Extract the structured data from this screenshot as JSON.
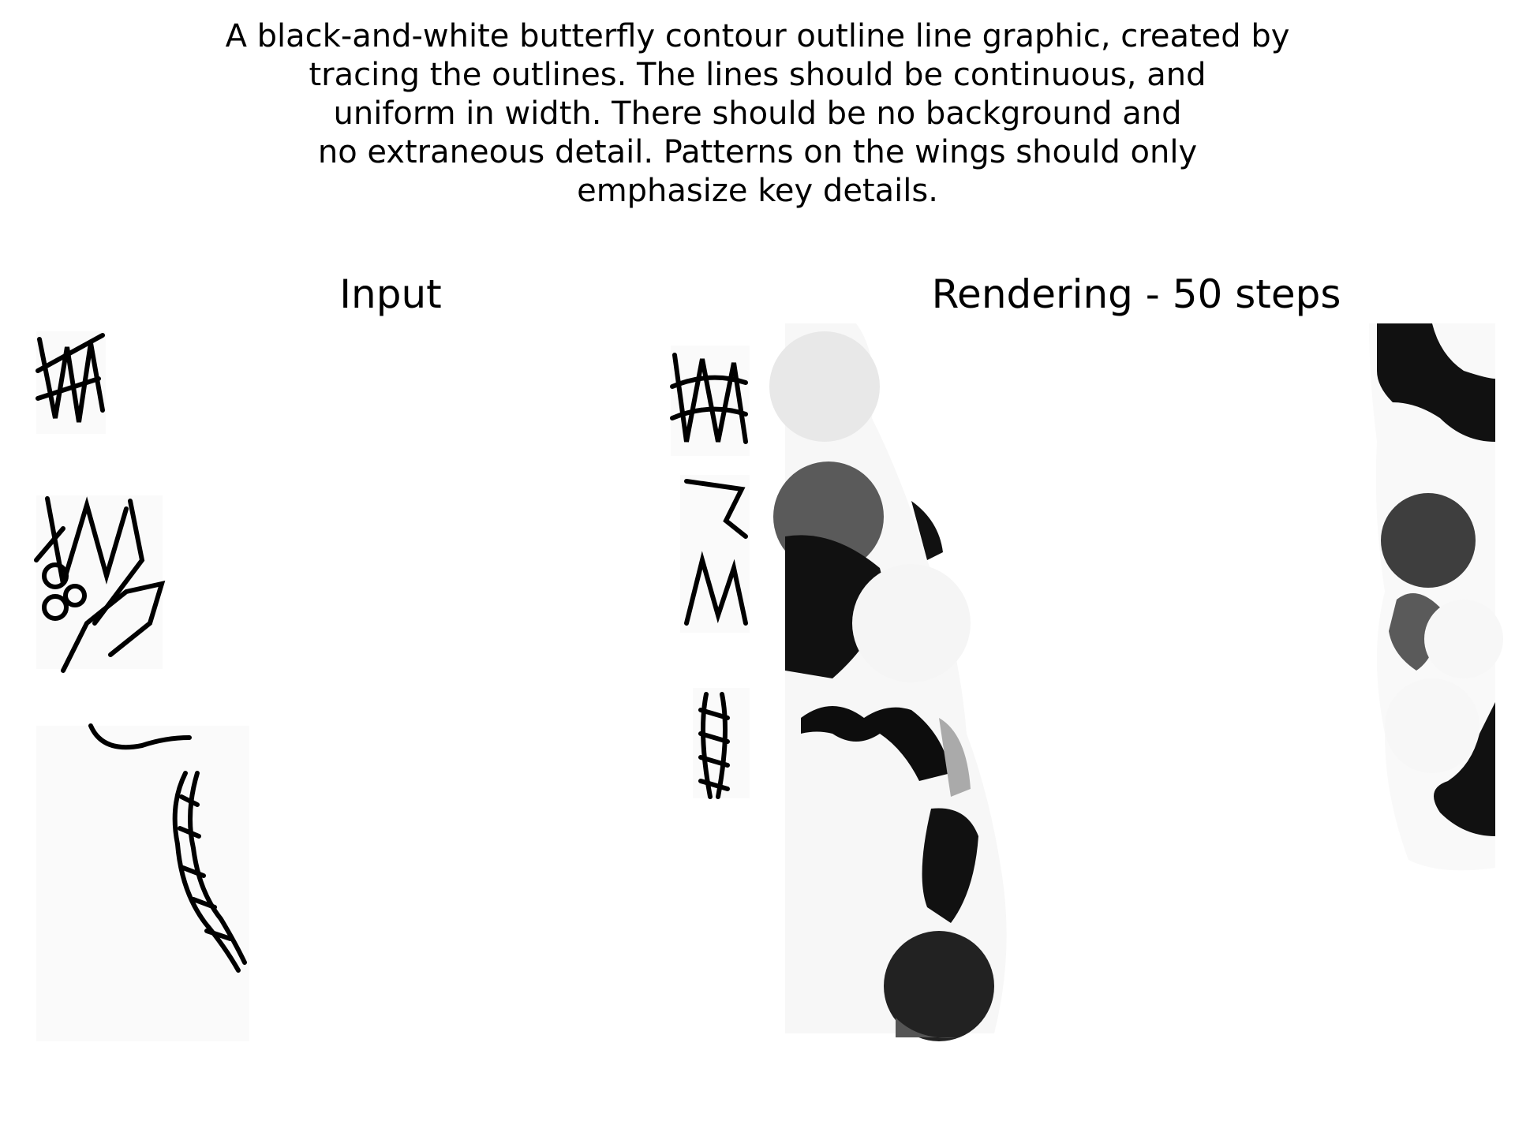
{
  "caption": {
    "lines": [
      "A black-and-white butterfly contour outline line graphic, created by",
      "tracing the outlines. The lines should be continuous, and",
      "uniform in width. There should be no background and",
      "no extraneous detail. Patterns on the wings should only",
      "emphasize key details."
    ]
  },
  "panels": {
    "input": {
      "title": "Input"
    },
    "rendering": {
      "title": "Rendering - 50 steps"
    }
  },
  "colors": {
    "ink": "#000000",
    "background": "#ffffff",
    "dark_gray": "#222222",
    "mid_gray": "#5a5a5a",
    "light_gray": "#d8d8d8"
  }
}
